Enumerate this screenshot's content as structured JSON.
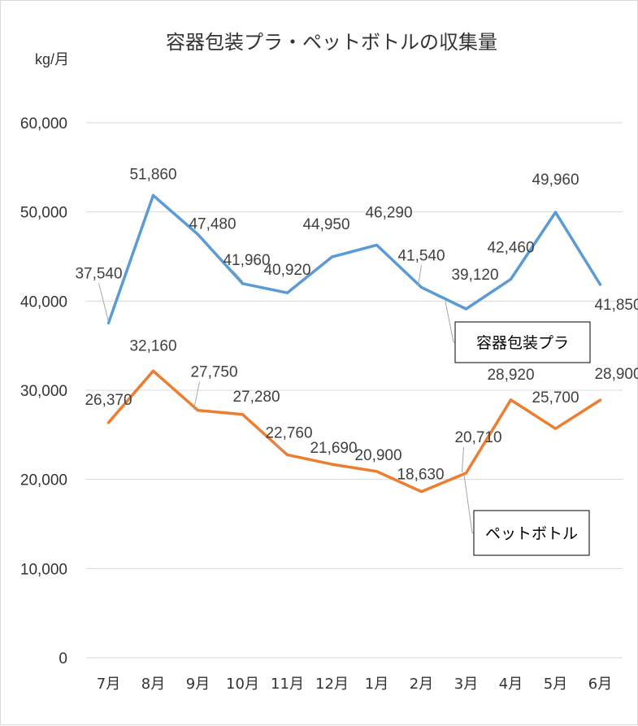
{
  "chart_data": {
    "type": "line",
    "title": "容器包装プラ・ペットボトルの収集量",
    "ylabel": "kg/月",
    "xlabel": "",
    "ylim": [
      0,
      60000
    ],
    "yticks": [
      "0",
      "10,000",
      "20,000",
      "30,000",
      "40,000",
      "50,000",
      "60,000"
    ],
    "grid": true,
    "legend": "none",
    "categories": [
      "7月",
      "8月",
      "9月",
      "10月",
      "11月",
      "12月",
      "1月",
      "2月",
      "3月",
      "4月",
      "5月",
      "6月"
    ],
    "series": [
      {
        "name": "容器包装プラ",
        "color": "#5b9bd5",
        "values": [
          37540,
          51860,
          47480,
          41960,
          40920,
          44950,
          46290,
          41540,
          39120,
          42460,
          49960,
          41850
        ],
        "labels": [
          "37,540",
          "51,860",
          "47,480",
          "41,960",
          "40,920",
          "44,950",
          "46,290",
          "41,540",
          "39,120",
          "42,460",
          "49,960",
          "41,850"
        ]
      },
      {
        "name": "ペットボトル",
        "color": "#ed7d31",
        "values": [
          26370,
          32160,
          27750,
          27280,
          22760,
          21690,
          20900,
          18630,
          20710,
          28920,
          25700,
          28900
        ],
        "labels": [
          "26,370",
          "32,160",
          "27,750",
          "27,280",
          "22,760",
          "21,690",
          "20,900",
          "18,630",
          "20,710",
          "28,920",
          "25,700",
          "28,900"
        ]
      }
    ]
  }
}
